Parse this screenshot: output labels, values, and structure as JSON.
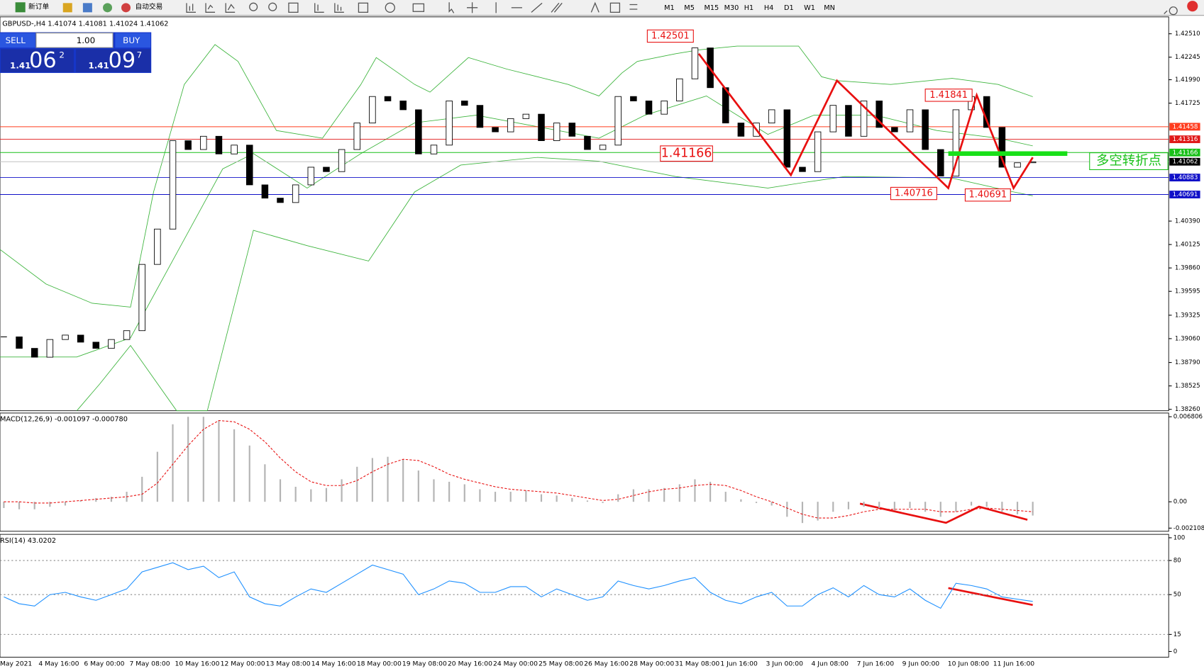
{
  "toolbar": {
    "buttons": [
      "新订单",
      "自动交易"
    ],
    "timeframes": [
      "M1",
      "M5",
      "M15",
      "M30",
      "H1",
      "H4",
      "D1",
      "W1",
      "MN"
    ]
  },
  "trade_panel": {
    "sell": "SELL",
    "lots": "1.00",
    "buy": "BUY",
    "bid": {
      "prefix": "1.41",
      "main": "06",
      "small": "2"
    },
    "ask": {
      "prefix": "1.41",
      "main": "09",
      "small": "7"
    }
  },
  "chart": {
    "type": "candlestick",
    "symbol_info": "GBPUSD-,H4  1.41074 1.41081 1.41024 1.41062",
    "ylim": [
      1.38244,
      1.42701
    ],
    "yticks": [
      {
        "value": 1.4251,
        "label": "1.42510"
      },
      1.42245,
      {
        "value": 1.4199,
        "label": "1.41990"
      },
      1.41725,
      {
        "value": 1.4039,
        "label": "1.40390"
      },
      1.40125,
      {
        "value": 1.3986,
        "label": "1.39860"
      },
      1.39595,
      1.39325,
      {
        "value": 1.3906,
        "label": "1.39060"
      },
      {
        "value": 1.3879,
        "label": "1.38790"
      },
      1.38525,
      {
        "value": 1.3826,
        "label": "1.38260"
      }
    ],
    "levels": [
      {
        "value": 1.41458,
        "color": "#ff3c1e"
      },
      {
        "value": 1.41316,
        "color": "#e01818"
      },
      {
        "value": 1.41166,
        "color": "#18c018"
      },
      {
        "value": 1.41062,
        "color": "#000000"
      },
      {
        "value": 1.40883,
        "color": "#1010c8"
      },
      {
        "value": 1.40691,
        "color": "#1010c8"
      }
    ],
    "closes": [
      1.3908,
      1.3895,
      1.3885,
      1.3905,
      1.391,
      1.3902,
      1.3895,
      1.3905,
      1.3915,
      1.399,
      1.403,
      1.413,
      1.412,
      1.4135,
      1.4115,
      1.4125,
      1.408,
      1.4065,
      1.406,
      1.408,
      1.41,
      1.4095,
      1.412,
      1.415,
      1.418,
      1.4175,
      1.4165,
      1.4115,
      1.4125,
      1.4175,
      1.417,
      1.4145,
      1.414,
      1.4155,
      1.416,
      1.413,
      1.415,
      1.4135,
      1.412,
      1.4125,
      1.418,
      1.4175,
      1.416,
      1.4175,
      1.42,
      1.4235,
      1.419,
      1.415,
      1.4135,
      1.415,
      1.4165,
      1.41,
      1.4095,
      1.414,
      1.417,
      1.4135,
      1.4175,
      1.4145,
      1.414,
      1.4165,
      1.412,
      1.409,
      1.4165,
      1.418,
      1.4145,
      1.41,
      1.4105,
      1.4106
    ],
    "annotations": [
      1.42501,
      1.41166,
      1.40716,
      1.41841,
      1.40691
    ],
    "note": "多空转折点",
    "time_labels": [
      "May 2021",
      "4 May 16:00",
      "6 May 00:00",
      "7 May 08:00",
      "10 May 16:00",
      "12 May 00:00",
      "13 May 08:00",
      "14 May 16:00",
      "18 May 00:00",
      "19 May 08:00",
      "20 May 16:00",
      "24 May 00:00",
      "25 May 08:00",
      "26 May 16:00",
      "28 May 00:00",
      "31 May 08:00",
      "1 Jun 16:00",
      "3 Jun 00:00",
      "4 Jun 08:00",
      "7 Jun 16:00",
      "9 Jun 00:00",
      "10 Jun 08:00",
      "11 Jun 16:00"
    ]
  },
  "macd": {
    "label": "MACD(12,26,9) -0.001097 -0.000780",
    "ylim": [
      -0.00236,
      0.0071
    ],
    "yticks": [
      0.006806,
      {
        "value": 0,
        "label": "0.00"
      },
      -0.002108
    ],
    "histogram": [
      -0.0005,
      -0.0006,
      -0.0006,
      -0.0004,
      -0.0003,
      0.0001,
      0.0003,
      0.0004,
      0.0008,
      0.002,
      0.004,
      0.0062,
      0.0068,
      0.0068,
      0.0065,
      0.0058,
      0.0045,
      0.003,
      0.0018,
      0.0012,
      0.001,
      0.0011,
      0.0018,
      0.0028,
      0.0035,
      0.0036,
      0.0034,
      0.0025,
      0.0018,
      0.0016,
      0.0014,
      0.001,
      0.0008,
      0.0008,
      0.0009,
      0.0006,
      0.0005,
      0.0003,
      0.0001,
      -0.0001,
      0.0006,
      0.001,
      0.001,
      0.0011,
      0.0014,
      0.0018,
      0.0016,
      0.0008,
      0.0002,
      -0.0001,
      -0.0003,
      -0.0012,
      -0.0017,
      -0.0015,
      -0.0008,
      -0.0006,
      -0.0004,
      -0.0005,
      -0.0007,
      -0.0005,
      -0.0008,
      -0.0012,
      -0.0008,
      -0.0003,
      -0.0004,
      -0.0008,
      -0.001,
      -0.0011
    ],
    "signal": [
      0,
      0,
      -0.0001,
      -0.0001,
      0,
      0.0001,
      0.0002,
      0.0003,
      0.0004,
      0.0006,
      0.0015,
      0.003,
      0.0045,
      0.0058,
      0.0065,
      0.0064,
      0.0058,
      0.0048,
      0.0035,
      0.0024,
      0.0016,
      0.0013,
      0.0013,
      0.0017,
      0.0024,
      0.003,
      0.0034,
      0.0033,
      0.0028,
      0.0022,
      0.0018,
      0.0015,
      0.0012,
      0.001,
      0.0009,
      0.0008,
      0.0007,
      0.0005,
      0.0003,
      0.0001,
      0.0002,
      0.0005,
      0.0008,
      0.001,
      0.0011,
      0.0013,
      0.0014,
      0.0013,
      0.0009,
      0.0004,
      0,
      -0.0005,
      -0.001,
      -0.0013,
      -0.0013,
      -0.0011,
      -0.0008,
      -0.0006,
      -0.0006,
      -0.0006,
      -0.0006,
      -0.0008,
      -0.0008,
      -0.0006,
      -0.0005,
      -0.0006,
      -0.0007,
      -0.0008
    ]
  },
  "rsi": {
    "label": "RSI(14) 43.0202",
    "ylim": [
      -5,
      103
    ],
    "yticks": [
      100,
      80,
      50,
      15,
      0
    ],
    "values": [
      48,
      42,
      40,
      50,
      52,
      48,
      45,
      50,
      55,
      70,
      74,
      78,
      72,
      75,
      65,
      70,
      48,
      42,
      40,
      48,
      55,
      52,
      60,
      68,
      76,
      72,
      68,
      50,
      55,
      62,
      60,
      52,
      52,
      57,
      57,
      48,
      55,
      50,
      45,
      48,
      62,
      58,
      55,
      58,
      62,
      65,
      52,
      45,
      42,
      48,
      52,
      40,
      40,
      50,
      56,
      48,
      58,
      50,
      48,
      55,
      45,
      38,
      60,
      58,
      55,
      48,
      46,
      44
    ]
  }
}
